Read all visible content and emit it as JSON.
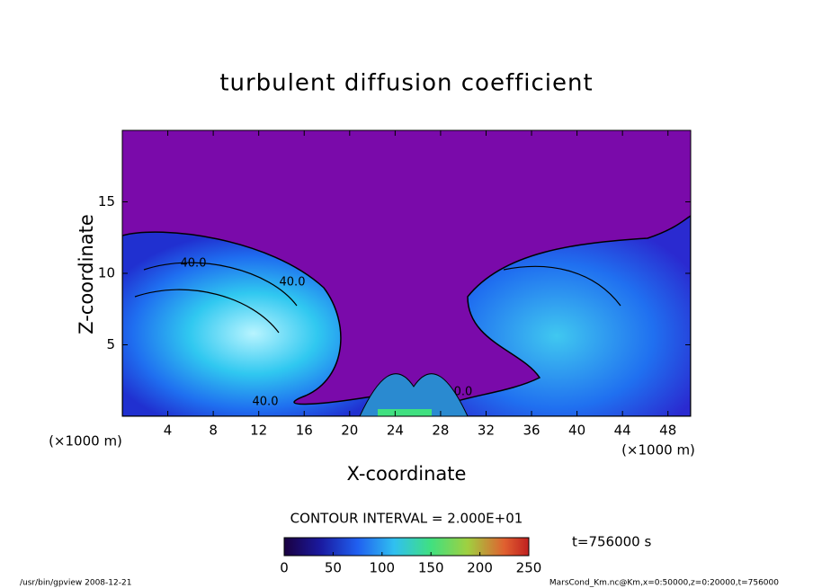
{
  "chart_data": {
    "type": "contour",
    "title": "turbulent diffusion coefficient",
    "x_label": "X-coordinate",
    "y_label": "Z-coordinate",
    "x_unit": "(×1000 m)",
    "y_unit": "(×1000 m)",
    "xlim": [
      0,
      50
    ],
    "ylim": [
      0,
      20
    ],
    "xticks": [
      4,
      8,
      12,
      16,
      20,
      24,
      28,
      32,
      36,
      40,
      44,
      48
    ],
    "yticks": [
      5,
      10,
      15
    ],
    "contour_interval_label": "CONTOUR INTERVAL = 2.000E+01",
    "time_label": "t=756000 s",
    "contour_labels": [
      "40.0",
      "40.0",
      "40.0",
      "0.0"
    ],
    "colorbar": {
      "range": [
        0,
        250
      ],
      "ticks": [
        0,
        50,
        100,
        150,
        200,
        250
      ]
    },
    "footer_left": "/usr/bin/gpview  2008-12-21",
    "footer_right": "MarsCond_Km.nc@Km,x=0:50000,z=0:20000,t=756000"
  }
}
